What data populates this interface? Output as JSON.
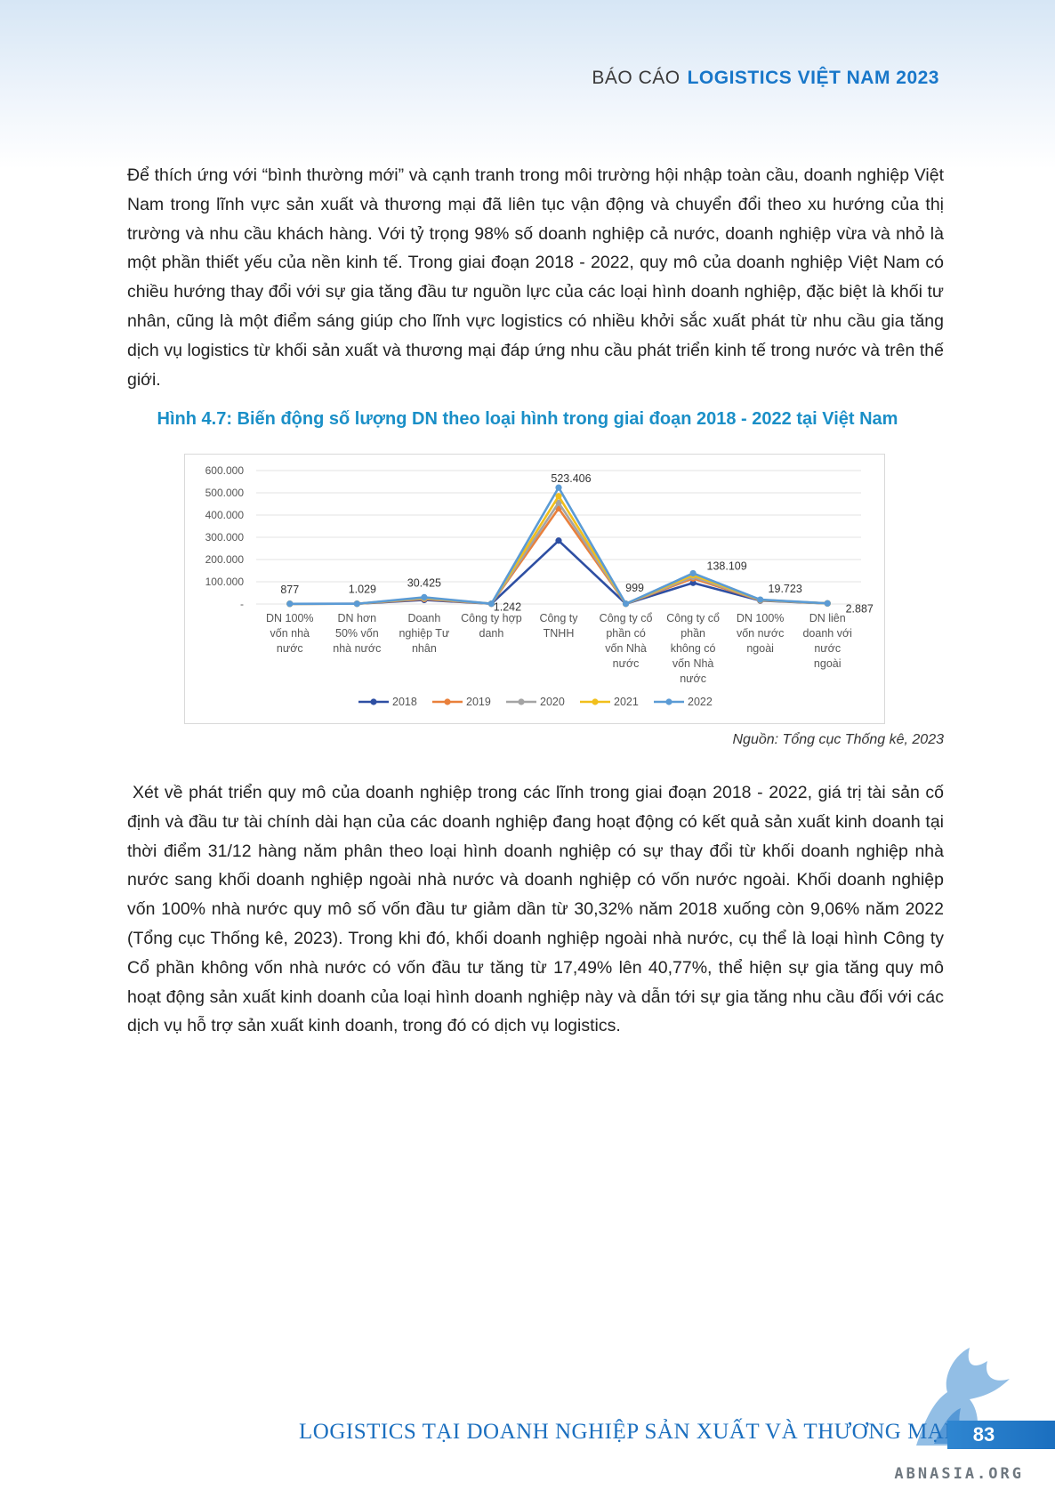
{
  "header": {
    "prefix": "BÁO CÁO",
    "brand": "LOGISTICS VIỆT NAM 2023"
  },
  "body": {
    "paragraph_1": "Để thích ứng với “bình thường mới” và cạnh tranh trong môi trường hội nhập toàn cầu, doanh nghiệp Việt Nam trong lĩnh vực sản xuất và thương mại đã liên tục vận động và chuyển đổi theo xu hướng của thị trường và nhu cầu khách hàng. Với tỷ trọng 98% số doanh nghiệp cả nước, doanh nghiệp vừa và nhỏ là một phần thiết yếu của nền kinh tế. Trong giai đoạn 2018 - 2022, quy mô của doanh nghiệp Việt Nam có chiều hướng thay đổi với sự gia tăng đầu tư nguồn lực của các loại hình doanh nghiệp, đặc biệt là khối tư nhân, cũng là một điểm sáng giúp cho lĩnh vực logistics có nhiều khởi sắc xuất phát từ nhu cầu gia tăng dịch vụ logistics từ khối sản xuất và thương mại đáp ứng nhu cầu phát triển kinh tế trong nước và trên thế giới.",
    "paragraph_2": "Xét về phát triển quy mô của doanh nghiệp trong các lĩnh trong giai đoạn 2018 - 2022, giá trị tài sản cố định và đầu tư tài chính dài hạn của các doanh nghiệp đang hoạt động có kết quả sản xuất kinh doanh tại thời điểm 31/12 hàng năm phân theo loại hình doanh nghiệp có sự thay đổi từ khối doanh nghiệp nhà nước sang khối doanh nghiệp ngoài nhà nước và doanh nghiệp có vốn nước ngoài. Khối doanh nghiệp vốn 100% nhà nước quy mô số vốn đầu tư giảm dần từ 30,32% năm 2018 xuống còn 9,06% năm 2022 (Tổng cục Thống kê, 2023). Trong khi đó, khối doanh nghiệp ngoài nhà nước, cụ thể là loại hình Công ty Cổ phần không vốn nhà nước có vốn đầu tư tăng từ 17,49% lên 40,77%, thể hiện sự gia tăng quy mô hoạt động sản xuất kinh doanh của loại hình doanh nghiệp này và dẫn tới sự gia tăng nhu cầu đối với các dịch vụ hỗ trợ sản xuất kinh doanh, trong đó có dịch vụ logistics."
  },
  "figure": {
    "title": "Hình 4.7: Biến động số lượng DN theo loại hình trong giai đoạn 2018 - 2022 tại Việt Nam",
    "source": "Nguồn: Tổng cục Thống kê, 2023"
  },
  "chart_data": {
    "type": "line",
    "categories": [
      [
        "DN 100%",
        "vốn nhà",
        "nước"
      ],
      [
        "DN hơn",
        "50% vốn",
        "nhà  nước"
      ],
      [
        "Doanh",
        "nghiệp Tư",
        "nhân"
      ],
      [
        "Công ty hợp",
        "danh"
      ],
      [
        "Công ty",
        "TNHH"
      ],
      [
        "Công ty cổ",
        "phần có",
        "vốn Nhà",
        "nước"
      ],
      [
        "Công ty cổ",
        "phần",
        "không có",
        "vốn Nhà",
        "nước"
      ],
      [
        "DN 100%",
        "vốn nước",
        "ngoài"
      ],
      [
        "DN liên",
        "doanh với",
        "nước",
        "ngoài"
      ]
    ],
    "yticks": [
      "600.000",
      "500.000",
      "400.000",
      "300.000",
      "200.000",
      "100.000",
      "-"
    ],
    "ylim": [
      0,
      600000
    ],
    "series": [
      {
        "name": "2018",
        "color": "#2e4fa3",
        "values": [
          900,
          1200,
          18000,
          1100,
          285000,
          1100,
          95000,
          15000,
          2600
        ]
      },
      {
        "name": "2019",
        "color": "#e9803b",
        "values": [
          880,
          1100,
          22000,
          1150,
          430000,
          1050,
          115000,
          16500,
          2700
        ]
      },
      {
        "name": "2020",
        "color": "#a4a4a4",
        "values": [
          880,
          1060,
          25000,
          1200,
          455000,
          1020,
          122000,
          17500,
          2750
        ]
      },
      {
        "name": "2021",
        "color": "#f1bf1c",
        "values": [
          878,
          1040,
          28000,
          1220,
          485000,
          1005,
          130000,
          18800,
          2820
        ]
      },
      {
        "name": "2022",
        "color": "#5b9bd5",
        "values": [
          877,
          1029,
          30425,
          1242,
          523406,
          999,
          138109,
          19723,
          2887
        ]
      }
    ],
    "data_labels": [
      "877",
      "1.029",
      "30.425",
      "1.242",
      "523.406",
      "999",
      "138.109",
      "19.723",
      "2.887"
    ],
    "legend_position": "bottom",
    "grid": true
  },
  "footer": {
    "title": "LOGISTICS TẠI DOANH NGHIỆP SẢN XUẤT VÀ THƯƠNG MẠI",
    "page": "83",
    "watermark": "ABNASIA.ORG"
  }
}
